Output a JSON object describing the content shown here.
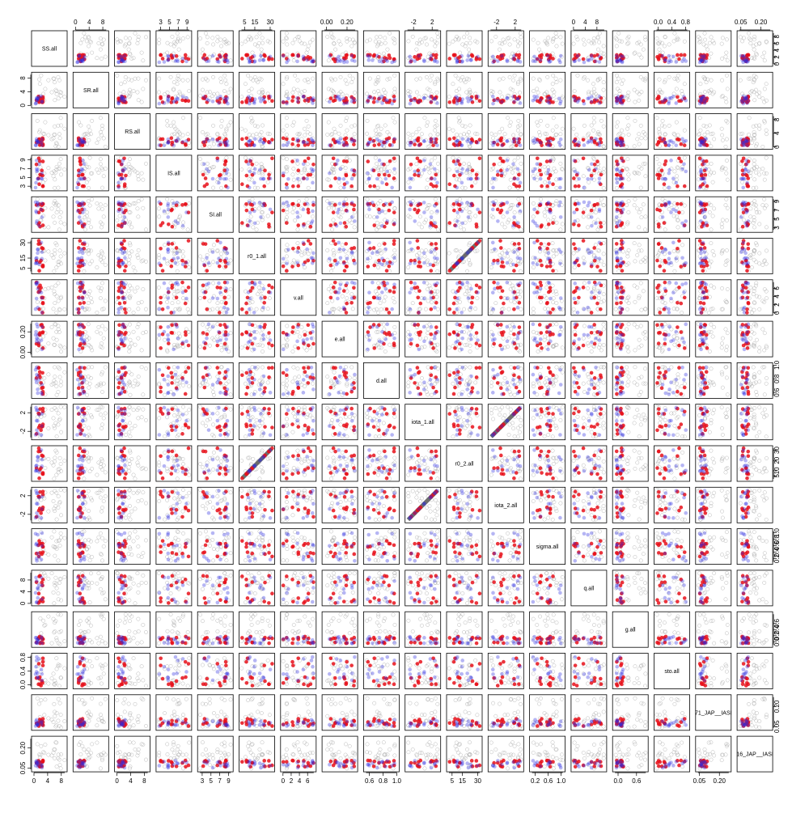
{
  "chart_data": {
    "type": "scatter",
    "variables": [
      "SS.all",
      "SR.all",
      "RS.all",
      "IS.all",
      "SI.all",
      "r0_1.all",
      "v.all",
      "e.all",
      "d.all",
      "iota_1.all",
      "r0_2.all",
      "iota_2.all",
      "sigma.all",
      "q.all",
      "g.all",
      "sto.all",
      "71_JAP__IASI",
      "16_JAP__IASI"
    ],
    "axis_ranges": [
      [
        0,
        9
      ],
      [
        0,
        9
      ],
      [
        0,
        9
      ],
      [
        2.5,
        9.5
      ],
      [
        2.5,
        9.5
      ],
      [
        2,
        32
      ],
      [
        0,
        7.5
      ],
      [
        -0.02,
        0.28
      ],
      [
        0.55,
        1.0
      ],
      [
        -3.3,
        3.3
      ],
      [
        2,
        32
      ],
      [
        -3.3,
        3.3
      ],
      [
        0.1,
        1.05
      ],
      [
        0,
        10.5
      ],
      [
        -0.1,
        0.9
      ],
      [
        -0.05,
        0.85
      ],
      [
        0.04,
        0.27
      ],
      [
        0.04,
        0.27
      ]
    ],
    "left_ticks": [
      {
        "panel": 1,
        "ticks": [
          0,
          4,
          8
        ]
      },
      {
        "panel": 3,
        "ticks": [
          3,
          5,
          7,
          9
        ]
      },
      {
        "panel": 5,
        "ticks": [
          5,
          15,
          30
        ]
      },
      {
        "panel": 7,
        "ticks": [
          0.0,
          0.2
        ],
        "labels": [
          "0.00",
          "0.20"
        ]
      },
      {
        "panel": 9,
        "ticks": [
          -2,
          2
        ]
      },
      {
        "panel": 11,
        "ticks": [
          -2,
          2
        ]
      },
      {
        "panel": 13,
        "ticks": [
          0,
          4,
          8
        ]
      },
      {
        "panel": 15,
        "ticks": [
          0.0,
          0.4,
          0.8
        ],
        "labels": [
          "0.0",
          "0.4",
          "0.8"
        ]
      },
      {
        "panel": 17,
        "ticks": [
          0.05,
          0.2
        ],
        "labels": [
          "0.05",
          "0.20"
        ]
      }
    ],
    "right_ticks": [
      {
        "panel": 0,
        "ticks": [
          0,
          2,
          4,
          6,
          8
        ]
      },
      {
        "panel": 2,
        "ticks": [
          0,
          4,
          8
        ]
      },
      {
        "panel": 4,
        "ticks": [
          3,
          5,
          7,
          9
        ]
      },
      {
        "panel": 6,
        "ticks": [
          0,
          2,
          4,
          6
        ]
      },
      {
        "panel": 8,
        "ticks": [
          0.6,
          0.8,
          1.0
        ],
        "labels": [
          "0.6",
          "0.8",
          "1.0"
        ]
      },
      {
        "panel": 10,
        "ticks": [
          5,
          10,
          20,
          30
        ]
      },
      {
        "panel": 12,
        "ticks": [
          0.2,
          0.4,
          0.6,
          0.8,
          1.0
        ],
        "labels": [
          "0.2",
          "0.4",
          "0.6",
          "0.8",
          "1.0"
        ]
      },
      {
        "panel": 14,
        "ticks": [
          0.0,
          0.2,
          0.4,
          0.6
        ],
        "labels": [
          "0.0",
          "0.2",
          "0.4",
          "0.6"
        ]
      },
      {
        "panel": 16,
        "ticks": [
          0.05,
          0.2
        ],
        "labels": [
          "0.05",
          "0.20"
        ]
      }
    ],
    "top_ticks": [
      {
        "panel": 1,
        "ticks": [
          0,
          4,
          8
        ]
      },
      {
        "panel": 3,
        "ticks": [
          3,
          5,
          7,
          9
        ]
      },
      {
        "panel": 5,
        "ticks": [
          5,
          15,
          30
        ]
      },
      {
        "panel": 7,
        "ticks": [
          0.0,
          0.2
        ],
        "labels": [
          "0.00",
          "0.20"
        ]
      },
      {
        "panel": 9,
        "ticks": [
          -2,
          2
        ]
      },
      {
        "panel": 11,
        "ticks": [
          -2,
          2
        ]
      },
      {
        "panel": 13,
        "ticks": [
          0,
          4,
          8
        ]
      },
      {
        "panel": 15,
        "ticks": [
          0.0,
          0.4,
          0.8
        ],
        "labels": [
          "0.0",
          "0.4",
          "0.8"
        ]
      },
      {
        "panel": 17,
        "ticks": [
          0.05,
          0.2
        ],
        "labels": [
          "0.05",
          "0.20"
        ]
      }
    ],
    "bottom_ticks": [
      {
        "panel": 0,
        "ticks": [
          0,
          4,
          8
        ]
      },
      {
        "panel": 2,
        "ticks": [
          0,
          4,
          8
        ]
      },
      {
        "panel": 4,
        "ticks": [
          3,
          5,
          7,
          9
        ]
      },
      {
        "panel": 6,
        "ticks": [
          0,
          2,
          4,
          6
        ]
      },
      {
        "panel": 8,
        "ticks": [
          0.6,
          0.8,
          1.0
        ],
        "labels": [
          "0.6",
          "0.8",
          "1.0"
        ]
      },
      {
        "panel": 10,
        "ticks": [
          5,
          15,
          30
        ]
      },
      {
        "panel": 12,
        "ticks": [
          0.2,
          0.6,
          1.0
        ],
        "labels": [
          "0.2",
          "0.6",
          "1.0"
        ]
      },
      {
        "panel": 14,
        "ticks": [
          0.0,
          0.6
        ],
        "labels": [
          "0.0",
          "0.6"
        ]
      },
      {
        "panel": 16,
        "ticks": [
          0.05,
          0.2
        ],
        "labels": [
          "0.05",
          "0.20"
        ]
      }
    ],
    "point_groups": [
      {
        "group": "background",
        "color": "#9e9e9e",
        "style": "open-circle",
        "count_per_panel": 24
      },
      {
        "group": "highlight-a",
        "color": "#e8101a",
        "style": "filled-circle",
        "count": 12
      },
      {
        "group": "highlight-b",
        "color": "#2a2adf",
        "style": "filled-circle",
        "count": 12
      }
    ],
    "identity_line_pairs": [
      [
        5,
        10
      ],
      [
        9,
        11
      ]
    ],
    "grid": false,
    "legend": "none"
  }
}
